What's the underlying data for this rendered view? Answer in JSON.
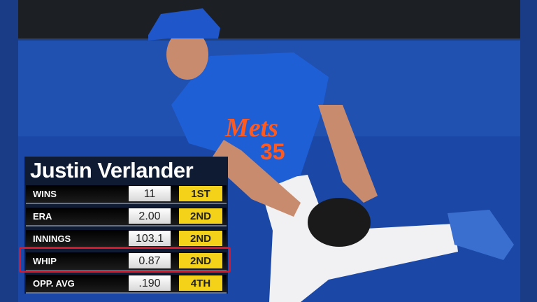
{
  "player": {
    "name": "Justin Verlander"
  },
  "jersey": {
    "team_script": "Mets",
    "number": "35"
  },
  "stats": [
    {
      "label": "WINS",
      "value": "11",
      "rank": "1ST"
    },
    {
      "label": "ERA",
      "value": "2.00",
      "rank": "2ND"
    },
    {
      "label": "INNINGS",
      "value": "103.1",
      "rank": "2ND"
    },
    {
      "label": "WHIP",
      "value": "0.87",
      "rank": "2ND",
      "highlighted": true
    },
    {
      "label": "OPP. AVG",
      "value": ".190",
      "rank": "4TH"
    }
  ],
  "colors": {
    "wall": "#1d4aa8",
    "rank_badge": "#f4d21a",
    "highlight": "#d8182a",
    "panel": "#0f1b33"
  }
}
